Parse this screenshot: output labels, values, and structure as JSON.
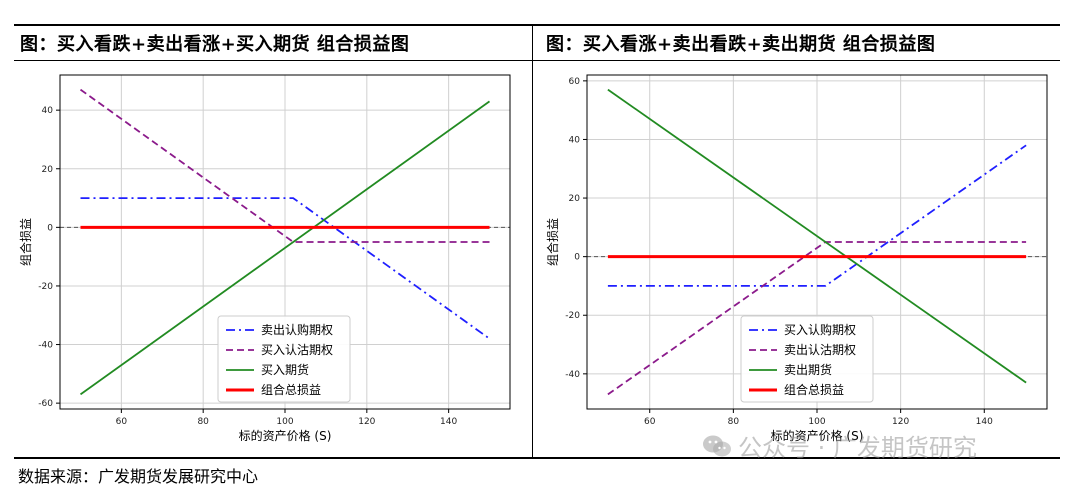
{
  "panels": [
    {
      "title": "图：买入看跌+卖出看涨+买入期货 组合损益图"
    },
    {
      "title": "图：买入看涨+卖出看跌+卖出期货 组合损益图"
    }
  ],
  "source": "数据来源：广发期货发展研究中心",
  "watermark": "公众号 · 广发期货研究",
  "chart_data": [
    {
      "type": "line",
      "xlabel": "标的资产价格 (S)",
      "ylabel": "组合损益",
      "xlim": [
        45,
        155
      ],
      "ylim": [
        -62,
        52
      ],
      "xticks": [
        60,
        80,
        100,
        120,
        140
      ],
      "yticks": [
        -60,
        -40,
        -20,
        0,
        20,
        40
      ],
      "grid": true,
      "legend": "lower-center",
      "series": [
        {
          "name": "卖出认购期权",
          "color": "#1f1fff",
          "dash": "dashdot",
          "x": [
            50,
            102,
            150
          ],
          "y": [
            10,
            10,
            -38
          ]
        },
        {
          "name": "买入认沽期权",
          "color": "#8b1a8b",
          "dash": "dashed",
          "x": [
            50,
            102,
            150
          ],
          "y": [
            47,
            -5,
            -5
          ]
        },
        {
          "name": "买入期货",
          "color": "#228b22",
          "dash": "solid",
          "x": [
            50,
            150
          ],
          "y": [
            -57,
            43
          ]
        },
        {
          "name": "组合总损益",
          "color": "#ff0000",
          "dash": "solid-thick",
          "x": [
            50,
            150
          ],
          "y": [
            0,
            0
          ]
        }
      ]
    },
    {
      "type": "line",
      "xlabel": "标的资产价格 (S)",
      "ylabel": "组合损益",
      "xlim": [
        45,
        155
      ],
      "ylim": [
        -52,
        62
      ],
      "xticks": [
        60,
        80,
        100,
        120,
        140
      ],
      "yticks": [
        -40,
        -20,
        0,
        20,
        40,
        60
      ],
      "grid": true,
      "legend": "lower-center",
      "series": [
        {
          "name": "买入认购期权",
          "color": "#1f1fff",
          "dash": "dashdot",
          "x": [
            50,
            102,
            150
          ],
          "y": [
            -10,
            -10,
            38
          ]
        },
        {
          "name": "卖出认沽期权",
          "color": "#8b1a8b",
          "dash": "dashed",
          "x": [
            50,
            102,
            150
          ],
          "y": [
            -47,
            5,
            5
          ]
        },
        {
          "name": "卖出期货",
          "color": "#228b22",
          "dash": "solid",
          "x": [
            50,
            150
          ],
          "y": [
            57,
            -43
          ]
        },
        {
          "name": "组合总损益",
          "color": "#ff0000",
          "dash": "solid-thick",
          "x": [
            50,
            150
          ],
          "y": [
            0,
            0
          ]
        }
      ]
    }
  ]
}
